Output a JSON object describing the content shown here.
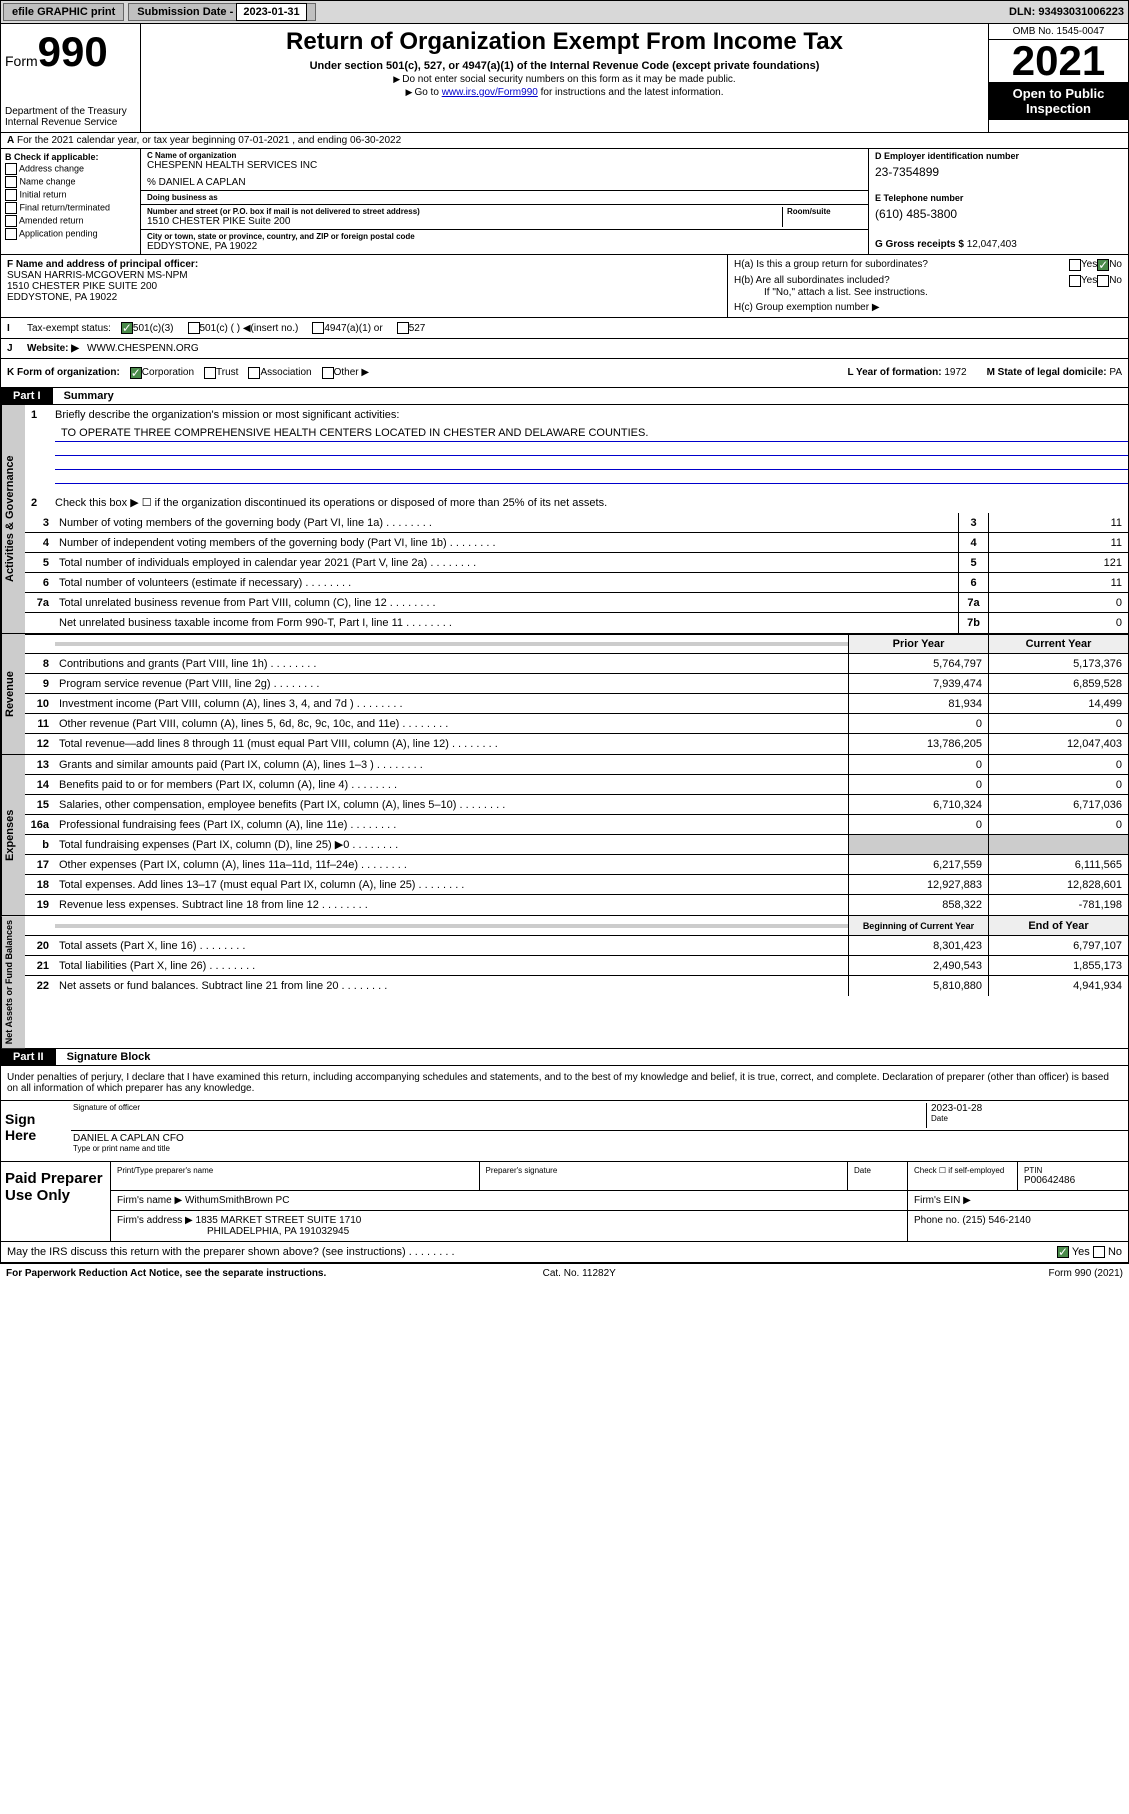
{
  "topbar": {
    "efile_btn": "efile GRAPHIC print",
    "sub_label": "Submission Date - ",
    "sub_date": "2023-01-31",
    "dln_label": "DLN: ",
    "dln": "93493031006223"
  },
  "header": {
    "form_word": "Form",
    "form_num": "990",
    "dept": "Department of the Treasury",
    "irs": "Internal Revenue Service",
    "title": "Return of Organization Exempt From Income Tax",
    "sub": "Under section 501(c), 527, or 4947(a)(1) of the Internal Revenue Code (except private foundations)",
    "note1": "Do not enter social security numbers on this form as it may be made public.",
    "note2_pre": "Go to ",
    "note2_link": "www.irs.gov/Form990",
    "note2_post": " for instructions and the latest information.",
    "omb": "OMB No. 1545-0047",
    "year": "2021",
    "pub": "Open to Public Inspection"
  },
  "line_a": "For the 2021 calendar year, or tax year beginning 07-01-2021 , and ending 06-30-2022",
  "col_b": {
    "hdr": "B Check if applicable:",
    "items": [
      "Address change",
      "Name change",
      "Initial return",
      "Final return/terminated",
      "Amended return",
      "Application pending"
    ]
  },
  "col_c": {
    "name_lab": "C Name of organization",
    "name": "CHESPENN HEALTH SERVICES INC",
    "care_lab": "% DANIEL A CAPLAN",
    "dba_lab": "Doing business as",
    "addr_lab": "Number and street (or P.O. box if mail is not delivered to street address)",
    "room_lab": "Room/suite",
    "addr": "1510 CHESTER PIKE Suite 200",
    "city_lab": "City or town, state or province, country, and ZIP or foreign postal code",
    "city": "EDDYSTONE, PA  19022"
  },
  "col_d": {
    "ein_lab": "D Employer identification number",
    "ein": "23-7354899",
    "tel_lab": "E Telephone number",
    "tel": "(610) 485-3800",
    "gross_lab": "G Gross receipts $ ",
    "gross": "12,047,403"
  },
  "sec_f": {
    "lab": "F Name and address of principal officer:",
    "name": "SUSAN HARRIS-MCGOVERN MS-NPM",
    "addr1": "1510 CHESTER PIKE SUITE 200",
    "addr2": "EDDYSTONE, PA  19022"
  },
  "sec_h": {
    "ha": "H(a)  Is this a group return for subordinates?",
    "hb": "H(b)  Are all subordinates included?",
    "hb_note": "If \"No,\" attach a list. See instructions.",
    "hc": "H(c)  Group exemption number ▶",
    "yes": "Yes",
    "no": "No"
  },
  "line_i": {
    "lab": "Tax-exempt status:",
    "opts": [
      "501(c)(3)",
      "501(c) (  ) ◀(insert no.)",
      "4947(a)(1) or",
      "527"
    ]
  },
  "line_j": {
    "lab": "Website: ▶",
    "val": "WWW.CHESPENN.ORG"
  },
  "line_k": {
    "lab": "K Form of organization:",
    "opts": [
      "Corporation",
      "Trust",
      "Association",
      "Other ▶"
    ],
    "yr_lab": "L Year of formation: ",
    "yr": "1972",
    "state_lab": "M State of legal domicile: ",
    "state": "PA"
  },
  "part1": {
    "hdr": "Part I",
    "title": "Summary",
    "q1": "Briefly describe the organization's mission or most significant activities:",
    "mission": "TO OPERATE THREE COMPREHENSIVE HEALTH CENTERS LOCATED IN CHESTER AND DELAWARE COUNTIES.",
    "q2": "Check this box ▶ ☐ if the organization discontinued its operations or disposed of more than 25% of its net assets.",
    "tab_ag": "Activities & Governance",
    "tab_rev": "Revenue",
    "tab_exp": "Expenses",
    "tab_na": "Net Assets or Fund Balances",
    "lines_simple": [
      {
        "n": "3",
        "d": "Number of voting members of the governing body (Part VI, line 1a)",
        "v": "11"
      },
      {
        "n": "4",
        "d": "Number of independent voting members of the governing body (Part VI, line 1b)",
        "v": "11"
      },
      {
        "n": "5",
        "d": "Total number of individuals employed in calendar year 2021 (Part V, line 2a)",
        "v": "121"
      },
      {
        "n": "6",
        "d": "Total number of volunteers (estimate if necessary)",
        "v": "11"
      },
      {
        "n": "7a",
        "d": "Total unrelated business revenue from Part VIII, column (C), line 12",
        "v": "0"
      },
      {
        "n": "",
        "d": "Net unrelated business taxable income from Form 990-T, Part I, line 11",
        "box": "7b",
        "v": "0"
      }
    ],
    "col_py": "Prior Year",
    "col_cy": "Current Year",
    "col_boy": "Beginning of Current Year",
    "col_eoy": "End of Year",
    "rev": [
      {
        "n": "8",
        "d": "Contributions and grants (Part VIII, line 1h)",
        "p": "5,764,797",
        "c": "5,173,376"
      },
      {
        "n": "9",
        "d": "Program service revenue (Part VIII, line 2g)",
        "p": "7,939,474",
        "c": "6,859,528"
      },
      {
        "n": "10",
        "d": "Investment income (Part VIII, column (A), lines 3, 4, and 7d )",
        "p": "81,934",
        "c": "14,499"
      },
      {
        "n": "11",
        "d": "Other revenue (Part VIII, column (A), lines 5, 6d, 8c, 9c, 10c, and 11e)",
        "p": "0",
        "c": "0"
      },
      {
        "n": "12",
        "d": "Total revenue—add lines 8 through 11 (must equal Part VIII, column (A), line 12)",
        "p": "13,786,205",
        "c": "12,047,403"
      }
    ],
    "exp": [
      {
        "n": "13",
        "d": "Grants and similar amounts paid (Part IX, column (A), lines 1–3 )",
        "p": "0",
        "c": "0"
      },
      {
        "n": "14",
        "d": "Benefits paid to or for members (Part IX, column (A), line 4)",
        "p": "0",
        "c": "0"
      },
      {
        "n": "15",
        "d": "Salaries, other compensation, employee benefits (Part IX, column (A), lines 5–10)",
        "p": "6,710,324",
        "c": "6,717,036"
      },
      {
        "n": "16a",
        "d": "Professional fundraising fees (Part IX, column (A), line 11e)",
        "p": "0",
        "c": "0"
      },
      {
        "n": "b",
        "d": "Total fundraising expenses (Part IX, column (D), line 25) ▶0",
        "p": "",
        "c": "",
        "grey": true
      },
      {
        "n": "17",
        "d": "Other expenses (Part IX, column (A), lines 11a–11d, 11f–24e)",
        "p": "6,217,559",
        "c": "6,111,565"
      },
      {
        "n": "18",
        "d": "Total expenses. Add lines 13–17 (must equal Part IX, column (A), line 25)",
        "p": "12,927,883",
        "c": "12,828,601"
      },
      {
        "n": "19",
        "d": "Revenue less expenses. Subtract line 18 from line 12",
        "p": "858,322",
        "c": "-781,198"
      }
    ],
    "na": [
      {
        "n": "20",
        "d": "Total assets (Part X, line 16)",
        "p": "8,301,423",
        "c": "6,797,107"
      },
      {
        "n": "21",
        "d": "Total liabilities (Part X, line 26)",
        "p": "2,490,543",
        "c": "1,855,173"
      },
      {
        "n": "22",
        "d": "Net assets or fund balances. Subtract line 21 from line 20",
        "p": "5,810,880",
        "c": "4,941,934"
      }
    ]
  },
  "part2": {
    "hdr": "Part II",
    "title": "Signature Block",
    "decl": "Under penalties of perjury, I declare that I have examined this return, including accompanying schedules and statements, and to the best of my knowledge and belief, it is true, correct, and complete. Declaration of preparer (other than officer) is based on all information of which preparer has any knowledge.",
    "sign_here": "Sign Here",
    "sig_officer": "Signature of officer",
    "sig_date_lab": "Date",
    "sig_date": "2023-01-28",
    "officer_name": "DANIEL A CAPLAN CFO",
    "type_name": "Type or print name and title"
  },
  "paid": {
    "hdr": "Paid Preparer Use Only",
    "cols": [
      "Print/Type preparer's name",
      "Preparer's signature",
      "Date"
    ],
    "check_lab": "Check ☐ if self-employed",
    "ptin_lab": "PTIN",
    "ptin": "P00642486",
    "firm_lab": "Firm's name    ▶",
    "firm": "WithumSmithBrown PC",
    "ein_lab": "Firm's EIN ▶",
    "addr_lab": "Firm's address ▶",
    "addr1": "1835 MARKET STREET SUITE 1710",
    "addr2": "PHILADELPHIA, PA  191032945",
    "phone_lab": "Phone no. ",
    "phone": "(215) 546-2140"
  },
  "bottom": {
    "q": "May the IRS discuss this return with the preparer shown above? (see instructions)",
    "yes": "Yes",
    "no": "No",
    "pra": "For Paperwork Reduction Act Notice, see the separate instructions.",
    "cat": "Cat. No. 11282Y",
    "form": "Form 990 (2021)"
  }
}
